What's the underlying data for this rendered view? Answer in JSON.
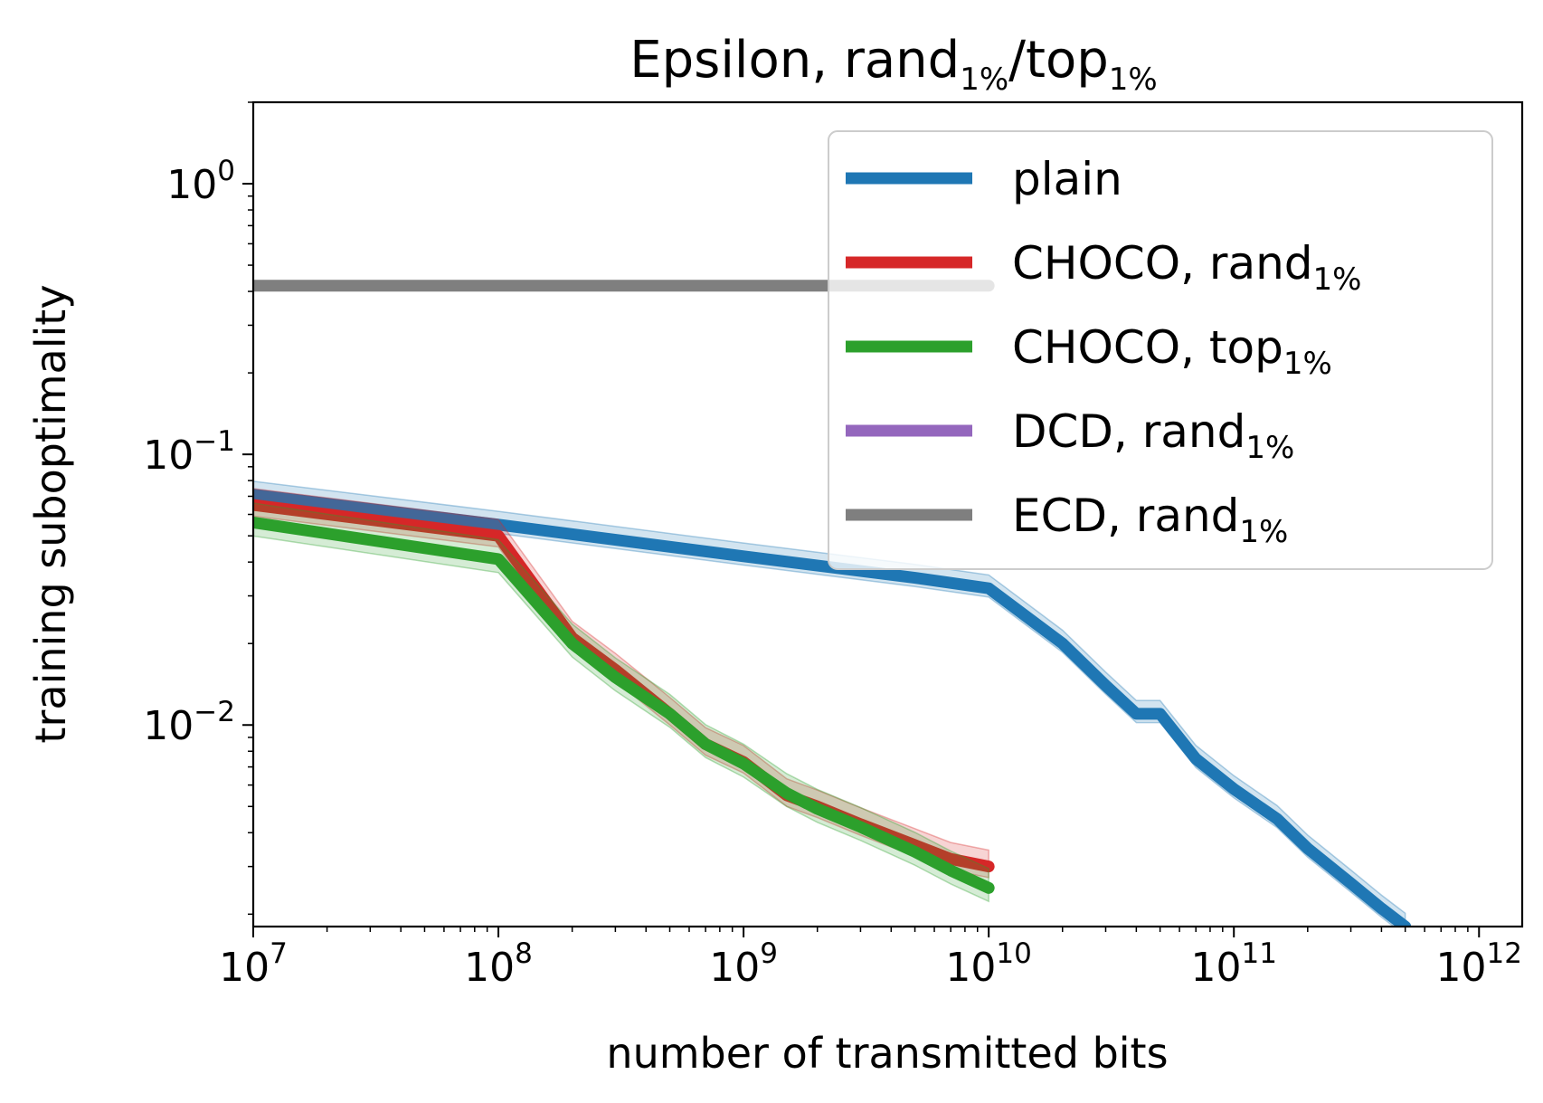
{
  "chart_data": {
    "type": "line",
    "title": {
      "main": "Epsilon, rand",
      "sub1": "1%",
      "mid": "/top",
      "sub2": "1%"
    },
    "xlabel": "number of transmitted bits",
    "ylabel": "training suboptimality",
    "xscale": "log",
    "yscale": "log",
    "xlim": [
      10000000,
      1500000000000
    ],
    "ylim": [
      0.0018,
      2.0
    ],
    "x_ticks": [
      {
        "value": 10000000,
        "base": "10",
        "exp": "7"
      },
      {
        "value": 100000000,
        "base": "10",
        "exp": "8"
      },
      {
        "value": 1000000000,
        "base": "10",
        "exp": "9"
      },
      {
        "value": 10000000000,
        "base": "10",
        "exp": "10"
      },
      {
        "value": 100000000000,
        "base": "10",
        "exp": "11"
      },
      {
        "value": 1000000000000,
        "base": "10",
        "exp": "12"
      }
    ],
    "y_ticks": [
      {
        "value": 1,
        "base": "10",
        "exp": "0"
      },
      {
        "value": 0.1,
        "base": "10",
        "exp": "−1"
      },
      {
        "value": 0.01,
        "base": "10",
        "exp": "−2"
      }
    ],
    "legend_position": "top-right",
    "series": [
      {
        "key": "plain",
        "name": "plain",
        "sub": "",
        "color": "#1f77b4",
        "band": 0.12,
        "x": [
          10000000,
          100000000,
          1000000000,
          5000000000,
          10000000000,
          20000000000,
          30000000000,
          40000000000,
          50000000000,
          70000000000,
          100000000000,
          150000000000,
          200000000000,
          300000000000,
          400000000000,
          500000000000
        ],
        "y": [
          0.071,
          0.055,
          0.042,
          0.035,
          0.032,
          0.02,
          0.014,
          0.011,
          0.011,
          0.0075,
          0.0058,
          0.0045,
          0.0035,
          0.0026,
          0.0021,
          0.0018
        ]
      },
      {
        "key": "choco-rand",
        "name": "CHOCO,  rand",
        "sub": "1%",
        "color": "#d62728",
        "band": 0.15,
        "x": [
          10000000,
          100000000,
          200000000,
          300000000,
          500000000,
          700000000,
          1000000000,
          1500000000,
          2000000000,
          3000000000,
          5000000000,
          7000000000,
          10000000000
        ],
        "y": [
          0.065,
          0.05,
          0.021,
          0.016,
          0.011,
          0.0085,
          0.0073,
          0.0055,
          0.005,
          0.0043,
          0.0036,
          0.0032,
          0.003
        ]
      },
      {
        "key": "choco-top",
        "name": "CHOCO,  top",
        "sub": "1%",
        "color": "#2ca02c",
        "band": 0.18,
        "x": [
          10000000,
          100000000,
          200000000,
          300000000,
          500000000,
          700000000,
          1000000000,
          1500000000,
          2000000000,
          3000000000,
          5000000000,
          7000000000,
          10000000000
        ],
        "y": [
          0.056,
          0.041,
          0.02,
          0.015,
          0.011,
          0.0085,
          0.0072,
          0.0056,
          0.0049,
          0.0042,
          0.0034,
          0.0029,
          0.0025
        ]
      },
      {
        "key": "dcd-rand",
        "name": "DCD,  rand",
        "sub": "1%",
        "color": "#9467bd",
        "band": 0,
        "x": [],
        "y": []
      },
      {
        "key": "ecd-rand",
        "name": "ECD,  rand",
        "sub": "1%",
        "color": "#7f7f7f",
        "band": 0,
        "x": [
          10000000,
          10000000000
        ],
        "y": [
          0.42,
          0.42
        ]
      }
    ]
  }
}
